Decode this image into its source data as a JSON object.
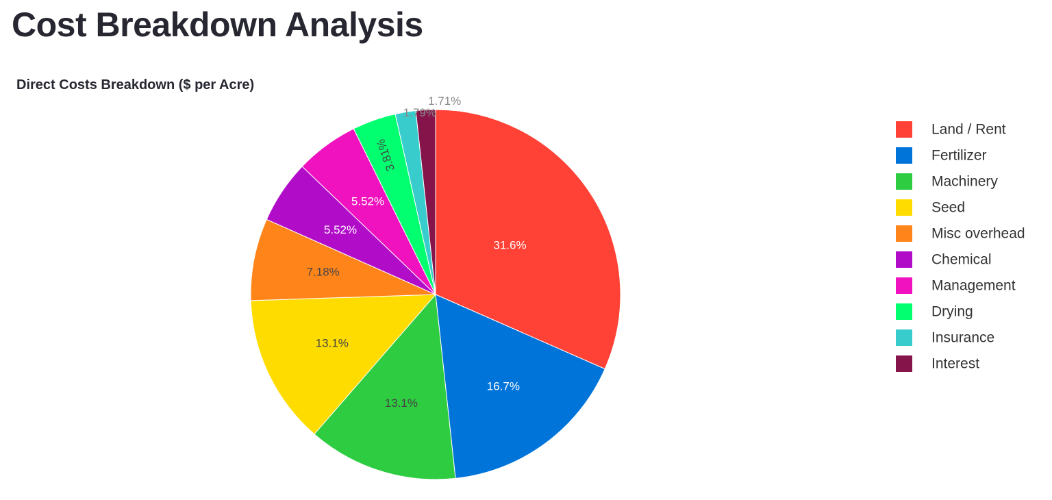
{
  "page": {
    "title": "Cost Breakdown Analysis"
  },
  "chart_data": {
    "type": "pie",
    "title": "Direct Costs Breakdown ($ per Acre)",
    "legend_position": "right",
    "categories": [
      "Land / Rent",
      "Fertilizer",
      "Machinery",
      "Seed",
      "Misc overhead",
      "Chemical",
      "Management",
      "Drying",
      "Insurance",
      "Interest"
    ],
    "values": [
      31.6,
      16.7,
      13.1,
      13.1,
      7.18,
      5.52,
      5.52,
      3.81,
      1.79,
      1.71
    ],
    "labels": [
      "31.6%",
      "16.7%",
      "13.1%",
      "13.1%",
      "7.18%",
      "5.52%",
      "5.52%",
      "3.81%",
      "1.79%",
      "1.71%"
    ],
    "colors": [
      "#ff4136",
      "#0074d9",
      "#2ecc40",
      "#ffdc00",
      "#ff851b",
      "#b10dc9",
      "#f012be",
      "#01ff70",
      "#39cccc",
      "#85144b"
    ],
    "label_colors": [
      "#ffffff",
      "#ffffff",
      "#444444",
      "#444444",
      "#444444",
      "#ffffff",
      "#ffffff",
      "#444444",
      "#888888",
      "#888888"
    ],
    "label_placement": [
      "inside",
      "inside",
      "inside",
      "inside",
      "inside",
      "inside",
      "inside",
      "inside",
      "outside",
      "outside"
    ]
  }
}
